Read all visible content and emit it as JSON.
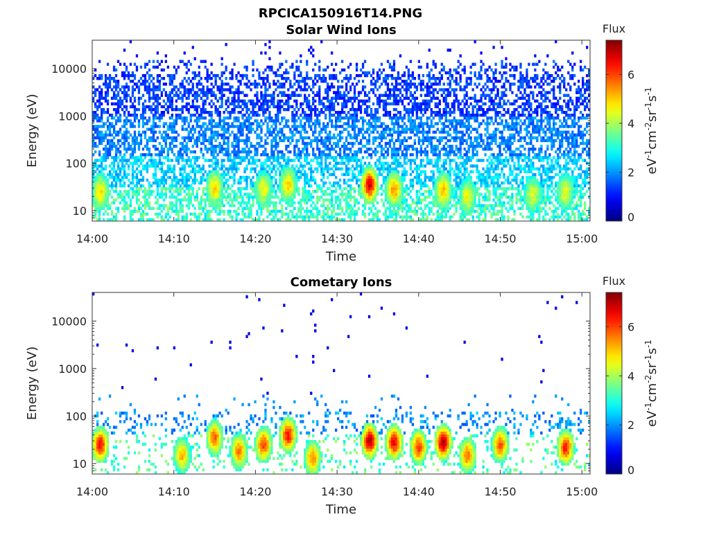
{
  "figure": {
    "title": "RPCICA150916T14.PNG"
  },
  "colorbar": {
    "label": "Flux",
    "unit_text": "eV-1cm-2sr-1s-1",
    "ticks": [
      "0",
      "2",
      "4",
      "6"
    ],
    "range": [
      0,
      7.4
    ],
    "colormap": "jet"
  },
  "chart_data": [
    {
      "type": "heatmap",
      "title": "Solar Wind Ions",
      "xlabel": "Time",
      "ylabel": "Energy (eV)",
      "xticks": [
        "14:00",
        "14:10",
        "14:20",
        "14:30",
        "14:40",
        "14:50",
        "15:00"
      ],
      "xlim": [
        "14:00",
        "15:00"
      ],
      "yscale": "log",
      "ylim": [
        6,
        40000
      ],
      "yticks": [
        "10",
        "100",
        "1000",
        "10000"
      ],
      "colorbar_label": "Flux",
      "clim": [
        0,
        7.4
      ],
      "description_of_pattern": {
        "background_band": {
          "energy_range": [
            30,
            15000
          ],
          "typical_flux": [
            0.8,
            2.2
          ]
        },
        "low_energy_band": {
          "energy_range": [
            6,
            50
          ],
          "typical_flux": [
            2.5,
            3.8
          ]
        },
        "enhancements": [
          {
            "time": "14:01",
            "energy": 25,
            "flux": 4.8
          },
          {
            "time": "14:15",
            "energy": 30,
            "flux": 5.0
          },
          {
            "time": "14:21",
            "energy": 28,
            "flux": 4.6
          },
          {
            "time": "14:24",
            "energy": 35,
            "flux": 5.0
          },
          {
            "time": "14:34",
            "energy": 35,
            "flux": 6.8
          },
          {
            "time": "14:37",
            "energy": 28,
            "flux": 5.4
          },
          {
            "time": "14:43",
            "energy": 27,
            "flux": 5.2
          },
          {
            "time": "14:46",
            "energy": 20,
            "flux": 4.6
          },
          {
            "time": "14:54",
            "energy": 22,
            "flux": 4.4
          },
          {
            "time": "14:58",
            "energy": 25,
            "flux": 4.5
          }
        ]
      }
    },
    {
      "type": "heatmap",
      "title": "Cometary Ions",
      "xlabel": "Time",
      "ylabel": "Energy (eV)",
      "xticks": [
        "14:00",
        "14:10",
        "14:20",
        "14:30",
        "14:40",
        "14:50",
        "15:00"
      ],
      "xlim": [
        "14:00",
        "15:00"
      ],
      "yscale": "log",
      "ylim": [
        6,
        40000
      ],
      "yticks": [
        "10",
        "100",
        "1000",
        "10000"
      ],
      "colorbar_label": "Flux",
      "clim": [
        0,
        7.4
      ],
      "description_of_pattern": {
        "sparse_high_energy_points": {
          "energy_range": [
            300,
            25000
          ],
          "flux": 0.8
        },
        "low_band": {
          "energy_range": [
            40,
            120
          ],
          "typical_flux": [
            1.5,
            2.5
          ]
        },
        "bursts": [
          {
            "time": "14:01",
            "energy": 25,
            "flux": 6.5
          },
          {
            "time": "14:11",
            "energy": 15,
            "flux": 5.2
          },
          {
            "time": "14:15",
            "energy": 35,
            "flux": 5.8
          },
          {
            "time": "14:18",
            "energy": 18,
            "flux": 5.6
          },
          {
            "time": "14:21",
            "energy": 25,
            "flux": 6.0
          },
          {
            "time": "14:24",
            "energy": 40,
            "flux": 6.4
          },
          {
            "time": "14:27",
            "energy": 13,
            "flux": 5.5
          },
          {
            "time": "14:34",
            "energy": 30,
            "flux": 7.0
          },
          {
            "time": "14:37",
            "energy": 28,
            "flux": 6.6
          },
          {
            "time": "14:40",
            "energy": 22,
            "flux": 6.1
          },
          {
            "time": "14:43",
            "energy": 28,
            "flux": 7.1
          },
          {
            "time": "14:46",
            "energy": 15,
            "flux": 5.7
          },
          {
            "time": "14:50",
            "energy": 25,
            "flux": 5.9
          },
          {
            "time": "14:58",
            "energy": 22,
            "flux": 6.3
          }
        ]
      }
    }
  ]
}
